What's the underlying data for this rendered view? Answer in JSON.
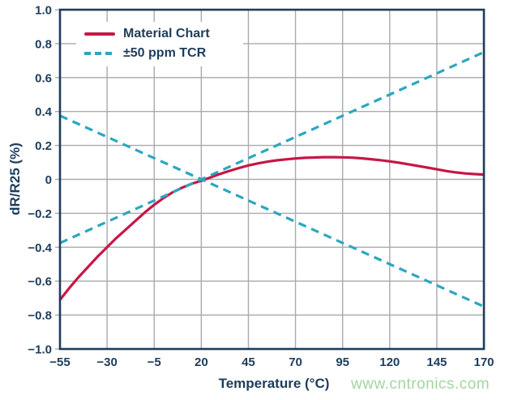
{
  "figure": {
    "x_axis_title": "Temperature (°C)",
    "y_axis_title": "dR/R25 (%)",
    "watermark": "www.cntronics.com"
  },
  "legend": {
    "items": [
      {
        "label": "Material Chart",
        "style": "solid",
        "color": "#c51747"
      },
      {
        "label": "±50 ppm TCR",
        "style": "dashed",
        "color": "#2ba7c0"
      }
    ]
  },
  "colors": {
    "axis_and_text": "#1d3d5c",
    "gridline": "#a8aaad",
    "material_chart_red": "#c51747",
    "tcr_teal": "#2ba7c0",
    "watermark_green": "#a2d5a0",
    "background": "#ffffff"
  },
  "chart_data": {
    "type": "line",
    "title": "",
    "xlabel": "Temperature (°C)",
    "ylabel": "dR/R25 (%)",
    "xlim": [
      -55,
      170
    ],
    "ylim": [
      -1.0,
      1.0
    ],
    "grid": true,
    "legend_position": "upper-left-inside",
    "xticks": [
      -55,
      -30,
      -5,
      20,
      45,
      70,
      95,
      120,
      145,
      170
    ],
    "xtick_labels": [
      "−55",
      "−30",
      "−5",
      "20",
      "45",
      "70",
      "95",
      "120",
      "145",
      "170"
    ],
    "yticks": [
      1.0,
      0.8,
      0.6,
      0.4,
      0.2,
      0,
      -0.2,
      -0.4,
      -0.6,
      -0.8,
      -1.0
    ],
    "ytick_labels": [
      "1.0",
      "0.8",
      "0.6",
      "0.4",
      "0.2",
      "0",
      "−0.2",
      "−0.4",
      "−0.6",
      "−0.8",
      "−1.0"
    ],
    "series": [
      {
        "id": "material-chart",
        "name": "Material Chart",
        "color": "#c51747",
        "style": "solid",
        "points": [
          [
            -55,
            -0.71
          ],
          [
            -50,
            -0.64
          ],
          [
            -45,
            -0.575
          ],
          [
            -40,
            -0.515
          ],
          [
            -35,
            -0.455
          ],
          [
            -30,
            -0.4
          ],
          [
            -25,
            -0.345
          ],
          [
            -20,
            -0.295
          ],
          [
            -15,
            -0.245
          ],
          [
            -10,
            -0.195
          ],
          [
            -5,
            -0.15
          ],
          [
            0,
            -0.11
          ],
          [
            5,
            -0.075
          ],
          [
            10,
            -0.048
          ],
          [
            15,
            -0.026
          ],
          [
            20,
            -0.008
          ],
          [
            25,
            0.012
          ],
          [
            30,
            0.032
          ],
          [
            35,
            0.05
          ],
          [
            40,
            0.067
          ],
          [
            45,
            0.082
          ],
          [
            50,
            0.094
          ],
          [
            55,
            0.104
          ],
          [
            60,
            0.112
          ],
          [
            65,
            0.118
          ],
          [
            70,
            0.123
          ],
          [
            75,
            0.127
          ],
          [
            80,
            0.129
          ],
          [
            85,
            0.131
          ],
          [
            90,
            0.131
          ],
          [
            95,
            0.13
          ],
          [
            100,
            0.128
          ],
          [
            105,
            0.124
          ],
          [
            110,
            0.119
          ],
          [
            115,
            0.113
          ],
          [
            120,
            0.106
          ],
          [
            125,
            0.098
          ],
          [
            130,
            0.089
          ],
          [
            135,
            0.079
          ],
          [
            140,
            0.069
          ],
          [
            145,
            0.059
          ],
          [
            150,
            0.049
          ],
          [
            155,
            0.041
          ],
          [
            160,
            0.035
          ],
          [
            165,
            0.031
          ],
          [
            170,
            0.028
          ]
        ]
      },
      {
        "id": "tcr-plus",
        "name": "+50 ppm TCR",
        "color": "#2ba7c0",
        "style": "dashed",
        "points": [
          [
            -55,
            -0.375
          ],
          [
            170,
            0.75
          ]
        ]
      },
      {
        "id": "tcr-minus",
        "name": "−50 ppm TCR",
        "color": "#2ba7c0",
        "style": "dashed",
        "points": [
          [
            -55,
            0.375
          ],
          [
            170,
            -0.75
          ]
        ]
      }
    ]
  }
}
